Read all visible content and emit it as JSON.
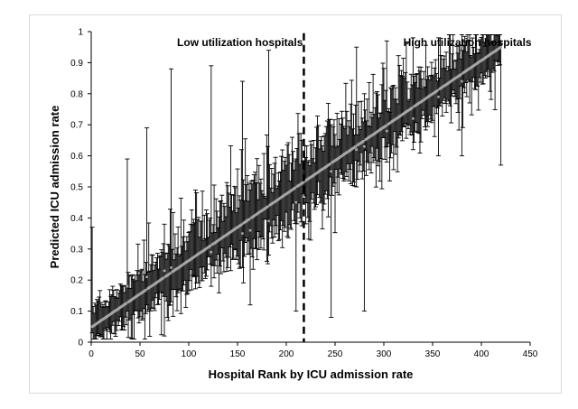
{
  "chart_data": {
    "type": "scatter",
    "title": "",
    "xlabel": "Hospital Rank by ICU admission rate",
    "ylabel": "Predicted ICU admission rate",
    "xlim": [
      0,
      450
    ],
    "ylim": [
      0,
      1
    ],
    "x_ticks": [
      "0",
      "50",
      "100",
      "150",
      "200",
      "250",
      "300",
      "350",
      "400",
      "450"
    ],
    "y_ticks": [
      "0",
      "0.1",
      "0.2",
      "0.3",
      "0.4",
      "0.5",
      "0.6",
      "0.7",
      "0.8",
      "0.9",
      "1"
    ],
    "grid": false,
    "legend": "none",
    "n_hospitals": 420,
    "point_estimate_range": [
      0.05,
      0.95
    ],
    "divider": {
      "x": 218,
      "style": "dashed"
    },
    "annotations": [
      {
        "text": "Low utilization hospitals",
        "x": 88,
        "y": 0.985
      },
      {
        "text": "High utilization hospitals",
        "x": 320,
        "y": 0.985
      }
    ],
    "notable_error_bars": [
      {
        "rank": 1,
        "point": 0.05,
        "low": 0.03,
        "high": 0.37
      },
      {
        "rank": 37,
        "point": 0.18,
        "low": 0.1,
        "high": 0.59
      },
      {
        "rank": 57,
        "point": 0.21,
        "low": 0.12,
        "high": 0.69
      },
      {
        "rank": 75,
        "point": 0.23,
        "low": 0.02,
        "high": 0.38
      },
      {
        "rank": 82,
        "point": 0.24,
        "low": 0.13,
        "high": 0.88
      },
      {
        "rank": 123,
        "point": 0.29,
        "low": 0.18,
        "high": 0.89
      },
      {
        "rank": 155,
        "point": 0.35,
        "low": 0.24,
        "high": 0.84
      },
      {
        "rank": 163,
        "point": 0.36,
        "low": 0.12,
        "high": 0.49
      },
      {
        "rank": 182,
        "point": 0.39,
        "low": 0.28,
        "high": 0.94
      },
      {
        "rank": 210,
        "point": 0.45,
        "low": 0.1,
        "high": 0.59
      },
      {
        "rank": 246,
        "point": 0.55,
        "low": 0.08,
        "high": 0.7
      },
      {
        "rank": 272,
        "point": 0.62,
        "low": 0.5,
        "high": 0.95
      },
      {
        "rank": 280,
        "point": 0.63,
        "low": 0.1,
        "high": 0.8
      },
      {
        "rank": 303,
        "point": 0.68,
        "low": 0.58,
        "high": 0.97
      },
      {
        "rank": 330,
        "point": 0.72,
        "low": 0.62,
        "high": 0.98
      },
      {
        "rank": 356,
        "point": 0.79,
        "low": 0.6,
        "high": 0.98
      },
      {
        "rank": 380,
        "point": 0.84,
        "low": 0.6,
        "high": 0.99
      },
      {
        "rank": 420,
        "point": 0.95,
        "low": 0.57,
        "high": 0.97
      }
    ],
    "colors": {
      "error_bar": "#000000",
      "point": "#a6a6a6",
      "divider": "#000000"
    }
  }
}
